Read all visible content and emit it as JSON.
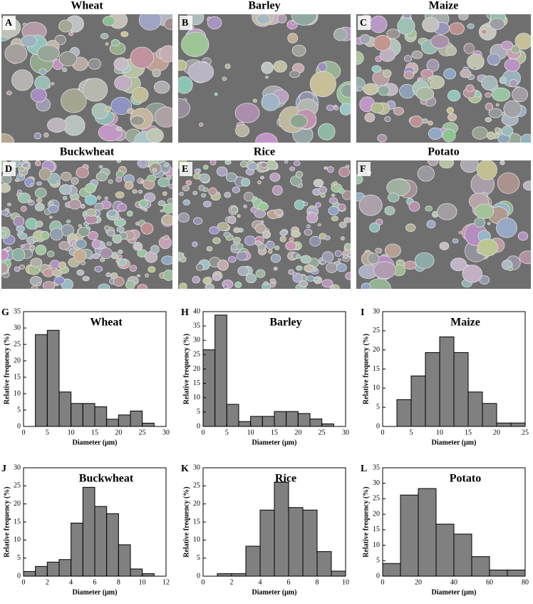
{
  "images": [
    {
      "label": "A",
      "title": "Wheat"
    },
    {
      "label": "B",
      "title": "Barley"
    },
    {
      "label": "C",
      "title": "Maize"
    },
    {
      "label": "D",
      "title": "Buckwheat"
    },
    {
      "label": "E",
      "title": "Rice"
    },
    {
      "label": "F",
      "title": "Potato"
    }
  ],
  "chart_data": [
    {
      "type": "histogram",
      "panel": "G",
      "title": "Wheat",
      "xlabel": "Diameter (μm)",
      "ylabel": "Relative frequency (%)",
      "color": "#808080",
      "bins": [
        2.5,
        5,
        7.5,
        10,
        12.5,
        15,
        17.5,
        20,
        22.5,
        25,
        27.5
      ],
      "values": [
        28,
        29.3,
        10.5,
        7,
        7,
        6,
        2.2,
        3.5,
        4.7,
        1
      ],
      "xlim": [
        0,
        30
      ],
      "xticks": [
        0,
        5,
        10,
        15,
        20,
        25,
        30
      ],
      "ylim": [
        0,
        35
      ],
      "yticks": [
        0,
        5,
        10,
        15,
        20,
        25,
        30,
        35
      ]
    },
    {
      "type": "histogram",
      "panel": "H",
      "title": "Barley",
      "xlabel": "Diameter (μm)",
      "ylabel": "Relative frequency (%)",
      "color": "#808080",
      "bins": [
        0,
        2.5,
        5,
        7.5,
        10,
        12.5,
        15,
        17.5,
        20,
        22.5,
        25,
        27.5
      ],
      "values": [
        26.7,
        38.8,
        7.7,
        1.7,
        3.5,
        3.5,
        5.2,
        5.2,
        4.5,
        2.6,
        0.9
      ],
      "xlim": [
        0,
        30
      ],
      "xticks": [
        0,
        5,
        10,
        15,
        20,
        25,
        30
      ],
      "ylim": [
        0,
        40
      ],
      "yticks": [
        0,
        5,
        10,
        15,
        20,
        25,
        30,
        35,
        40
      ]
    },
    {
      "type": "histogram",
      "panel": "I",
      "title": "Maize",
      "xlabel": "Diameter (μm)",
      "ylabel": "Relative frequency (%)",
      "color": "#808080",
      "bins": [
        2.5,
        5,
        7.5,
        10,
        12.5,
        15,
        17.5,
        20,
        22.5,
        25
      ],
      "values": [
        7,
        13.2,
        19.3,
        23.4,
        19.3,
        9,
        6,
        0.9,
        0.9
      ],
      "xlim": [
        0,
        25
      ],
      "xticks": [
        0,
        5,
        10,
        15,
        20,
        25
      ],
      "ylim": [
        0,
        30
      ],
      "yticks": [
        0,
        5,
        10,
        15,
        20,
        25,
        30
      ]
    },
    {
      "type": "histogram",
      "panel": "J",
      "title": "Buckwheat",
      "xlabel": "Diameter (μm)",
      "ylabel": "Relative frequency (%)",
      "color": "#808080",
      "bins": [
        0,
        1,
        2,
        3,
        4,
        5,
        6,
        7,
        8,
        9,
        10,
        11
      ],
      "values": [
        1.3,
        2.7,
        3.9,
        4.6,
        14.7,
        24.6,
        19.3,
        17.3,
        8.7,
        2,
        0.7
      ],
      "xlim": [
        0,
        12
      ],
      "xticks": [
        0,
        2,
        4,
        6,
        8,
        10,
        12
      ],
      "ylim": [
        0,
        30
      ],
      "yticks": [
        0,
        5,
        10,
        15,
        20,
        25,
        30
      ]
    },
    {
      "type": "histogram",
      "panel": "K",
      "title": "Rice",
      "xlabel": "Diameter (μm)",
      "ylabel": "Relative frequency (%)",
      "color": "#808080",
      "bins": [
        1,
        2,
        3,
        4,
        5,
        6,
        7,
        8,
        9,
        10
      ],
      "values": [
        0.7,
        0.7,
        8.3,
        18.3,
        26,
        19,
        18.3,
        6.8,
        1.4
      ],
      "xlim": [
        0,
        10
      ],
      "xticks": [
        0,
        2,
        4,
        6,
        8,
        10
      ],
      "ylim": [
        0,
        30
      ],
      "yticks": [
        0,
        5,
        10,
        15,
        20,
        25,
        30
      ]
    },
    {
      "type": "histogram",
      "panel": "L",
      "title": "Potato",
      "xlabel": "Diameter (μm)",
      "ylabel": "Relative frequency (%)",
      "color": "#808080",
      "bins": [
        0,
        10,
        20,
        30,
        40,
        50,
        60,
        70,
        80
      ],
      "values": [
        4.1,
        26.2,
        28.3,
        16.8,
        13.6,
        6.3,
        2,
        2
      ],
      "xlim": [
        0,
        80
      ],
      "xticks": [
        0,
        20,
        40,
        60,
        80
      ],
      "ylim": [
        0,
        35
      ],
      "yticks": [
        0,
        5,
        10,
        15,
        20,
        25,
        30,
        35
      ]
    }
  ]
}
